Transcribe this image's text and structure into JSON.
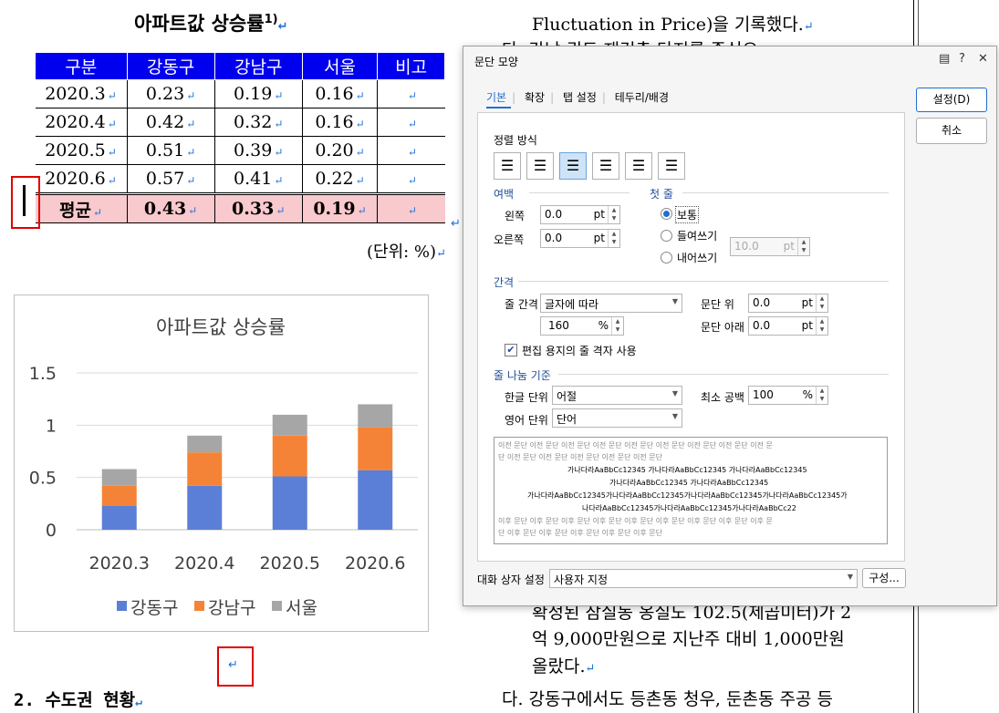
{
  "document": {
    "title": "아파트값 상승률",
    "title_footnote": "1)",
    "table": {
      "headers": [
        "구분",
        "강동구",
        "강남구",
        "서울",
        "비고"
      ],
      "rows": [
        [
          "2020.3",
          "0.23",
          "0.19",
          "0.16",
          ""
        ],
        [
          "2020.4",
          "0.42",
          "0.32",
          "0.16",
          ""
        ],
        [
          "2020.5",
          "0.51",
          "0.39",
          "0.20",
          ""
        ],
        [
          "2020.6",
          "0.57",
          "0.41",
          "0.22",
          ""
        ]
      ],
      "avg_row": [
        "평균",
        "0.43",
        "0.33",
        "0.19",
        ""
      ]
    },
    "unit_note": "(단위: %)",
    "section_2": "2. 수도권 현황",
    "right_text": {
      "line1": "Fluctuation in Price)을 기록했다.",
      "line2": "다. 강남 권도 재건축 단지를 중심으",
      "line3": "확정된 잠실동 옹실도 102.5(제곱미터)가 2",
      "line4": "억 9,000만원으로 지난주 대비 1,000만원",
      "line5": "올랐다.",
      "line6": "다. 강동구에서도 등촌동 청우, 둔촌동 주공 등"
    },
    "paragraph_mark": "↵"
  },
  "chart_data": {
    "type": "bar",
    "stacked": true,
    "title": "아파트값 상승률",
    "categories": [
      "2020.3",
      "2020.4",
      "2020.5",
      "2020.6"
    ],
    "series": [
      {
        "name": "강동구",
        "values": [
          0.23,
          0.42,
          0.51,
          0.57
        ],
        "color": "#5b7fd6"
      },
      {
        "name": "강남구",
        "values": [
          0.19,
          0.32,
          0.39,
          0.41
        ],
        "color": "#f58337"
      },
      {
        "name": "서울",
        "values": [
          0.16,
          0.16,
          0.2,
          0.22
        ],
        "color": "#a6a6a6"
      }
    ],
    "ylim": [
      0,
      1.5
    ],
    "yticks": [
      "0",
      "0.5",
      "1",
      "1.5"
    ],
    "grid": true,
    "legend": "bottom"
  },
  "dialog": {
    "title": "문단 모양",
    "tabs": [
      "기본",
      "확장",
      "탭 설정",
      "테두리/배경"
    ],
    "active_tab": "기본",
    "ok_button": "설정(D)",
    "cancel_button": "취소",
    "align": {
      "label": "정렬 방식",
      "selected_index": 2
    },
    "margin": {
      "label": "여백",
      "left_label": "왼쪽",
      "left_value": "0.0",
      "right_label": "오른쪽",
      "right_value": "0.0",
      "unit": "pt"
    },
    "first_line": {
      "label": "첫 줄",
      "options": [
        "보통",
        "들여쓰기",
        "내어쓰기"
      ],
      "selected": "보통",
      "value": "10.0",
      "unit": "pt"
    },
    "spacing": {
      "label": "간격",
      "line_label": "줄 간격",
      "line_type": "글자에 따라",
      "line_value": "160",
      "line_unit": "%",
      "above_label": "문단 위",
      "above_value": "0.0",
      "below_label": "문단 아래",
      "below_value": "0.0",
      "unit": "pt",
      "grid_check_label": "편집 용지의 줄 격자 사용",
      "grid_checked": true
    },
    "break": {
      "label": "줄 나눔 기준",
      "korean_label": "한글 단위",
      "korean_value": "어절",
      "english_label": "영어 단위",
      "english_value": "단어",
      "min_space_label": "최소 공백",
      "min_space_value": "100",
      "min_space_unit": "%"
    },
    "preview": {
      "prev1": "이전 문단 이전 문단 이전 문단 이전 문단 이전 문단 이전 문단 이전 문단 이전 문단 이전 문",
      "prev2": "단 이전 문단 이전 문단 이전 문단 이전 문단 이전 문단",
      "cur1": "가나다라AaBbCc12345 가나다라AaBbCc12345 가나다라AaBbCc12345",
      "cur2": "가나다라AaBbCc12345 가나다라AaBbCc12345",
      "cur3": "가나다라AaBbCc12345가나다라AaBbCc12345가나다라AaBbCc12345가나다라AaBbCc12345가",
      "cur4": "나다라AaBbCc12345가나다라AaBbCc12345가나다라AaBbCc22",
      "next1": "이후 문단 이후 문단 이후 문단 이후 문단 이후 문단 이후 문단 이후 문단 이후 문단 이후 문",
      "next2": "단 이후 문단 이후 문단 이후 문단 이후 문단 이후 문단"
    },
    "footer": {
      "label": "대화 상자 설정",
      "value": "사용자 지정",
      "config_button": "구성..."
    }
  }
}
